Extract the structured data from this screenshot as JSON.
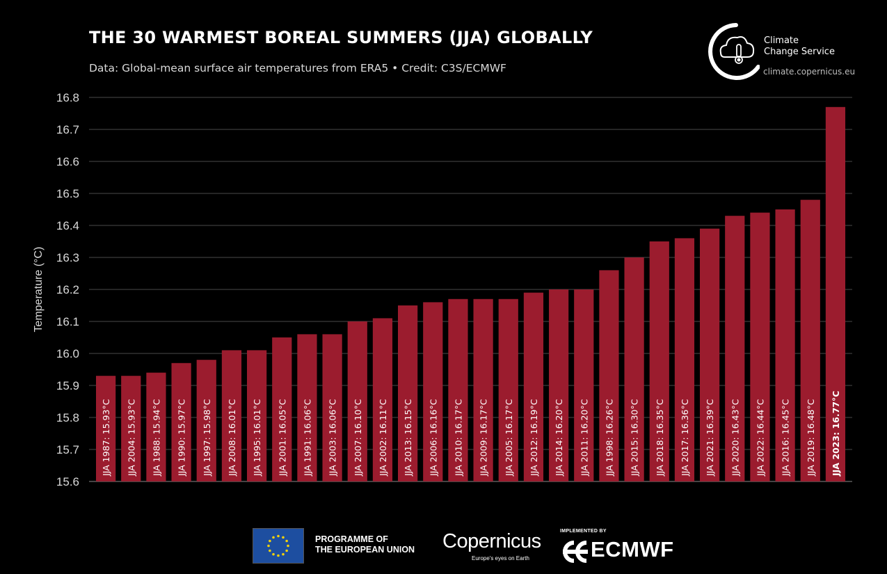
{
  "header": {
    "title": "THE 30 WARMEST BOREAL SUMMERS (JJA) GLOBALLY",
    "subtitle": "Data: Global-mean surface air temperatures from ERA5 • Credit: C3S/ECMWF"
  },
  "logo": {
    "c3s_name_line1": "Climate",
    "c3s_name_line2": "Change Service",
    "c3s_url": "climate.copernicus.eu"
  },
  "footer": {
    "eu_line1": "PROGRAMME OF",
    "eu_line2": "THE EUROPEAN UNION",
    "copernicus_name": "Copernicus",
    "copernicus_tagline": "Europe's eyes on Earth",
    "ecmwf_implemented": "IMPLEMENTED BY",
    "ecmwf_name": "ECMWF"
  },
  "colors": {
    "background": "#000000",
    "bar": "#9b1c2e",
    "grid": "#4a4a4a",
    "text": "#ffffff"
  },
  "chart_data": {
    "type": "bar",
    "title": "THE 30 WARMEST BOREAL SUMMERS (JJA) GLOBALLY",
    "ylabel": "Temperature (°C)",
    "xlabel": "",
    "ylim": [
      15.6,
      16.8
    ],
    "yticks": [
      15.6,
      15.7,
      15.8,
      15.9,
      16.0,
      16.1,
      16.2,
      16.3,
      16.4,
      16.5,
      16.6,
      16.7,
      16.8
    ],
    "grid": true,
    "highlight_index": 29,
    "categories": [
      "JJA 1987",
      "JJA 2004",
      "JJA 1988",
      "JJA 1990",
      "JJA 1997",
      "JJA 2008",
      "JJA 1995",
      "JJA 2001",
      "JJA 1991",
      "JJA 2003",
      "JJA 2007",
      "JJA 2002",
      "JJA 2013",
      "JJA 2006",
      "JJA 2010",
      "JJA 2009",
      "JJA 2005",
      "JJA 2012",
      "JJA 2014",
      "JJA 2011",
      "JJA 1998",
      "JJA 2015",
      "JJA 2018",
      "JJA 2017",
      "JJA 2021",
      "JJA 2020",
      "JJA 2022",
      "JJA 2016",
      "JJA 2019",
      "JJA 2023"
    ],
    "values": [
      15.93,
      15.93,
      15.94,
      15.97,
      15.98,
      16.01,
      16.01,
      16.05,
      16.06,
      16.06,
      16.1,
      16.11,
      16.15,
      16.16,
      16.17,
      16.17,
      16.17,
      16.19,
      16.2,
      16.2,
      16.26,
      16.3,
      16.35,
      16.36,
      16.39,
      16.43,
      16.44,
      16.45,
      16.48,
      16.77
    ],
    "labels": [
      "JJA 1987: 15.93°C",
      "JJA 2004: 15.93°C",
      "JJA 1988: 15.94°C",
      "JJA 1990: 15.97°C",
      "JJA 1997: 15.98°C",
      "JJA 2008: 16.01°C",
      "JJA 1995: 16.01°C",
      "JJA 2001: 16.05°C",
      "JJA 1991: 16.06°C",
      "JJA 2003: 16.06°C",
      "JJA 2007: 16.10°C",
      "JJA 2002: 16.11°C",
      "JJA 2013: 16.15°C",
      "JJA 2006: 16.16°C",
      "JJA 2010: 16.17°C",
      "JJA 2009: 16.17°C",
      "JJA 2005: 16.17°C",
      "JJA 2012: 16.19°C",
      "JJA 2014: 16.20°C",
      "JJA 2011: 16.20°C",
      "JJA 1998: 16.26°C",
      "JJA 2015: 16.30°C",
      "JJA 2018: 16.35°C",
      "JJA 2017: 16.36°C",
      "JJA 2021: 16.39°C",
      "JJA 2020: 16.43°C",
      "JJA 2022: 16.44°C",
      "JJA 2016: 16.45°C",
      "JJA 2019: 16.48°C",
      "JJA 2023: 16.77°C"
    ]
  }
}
